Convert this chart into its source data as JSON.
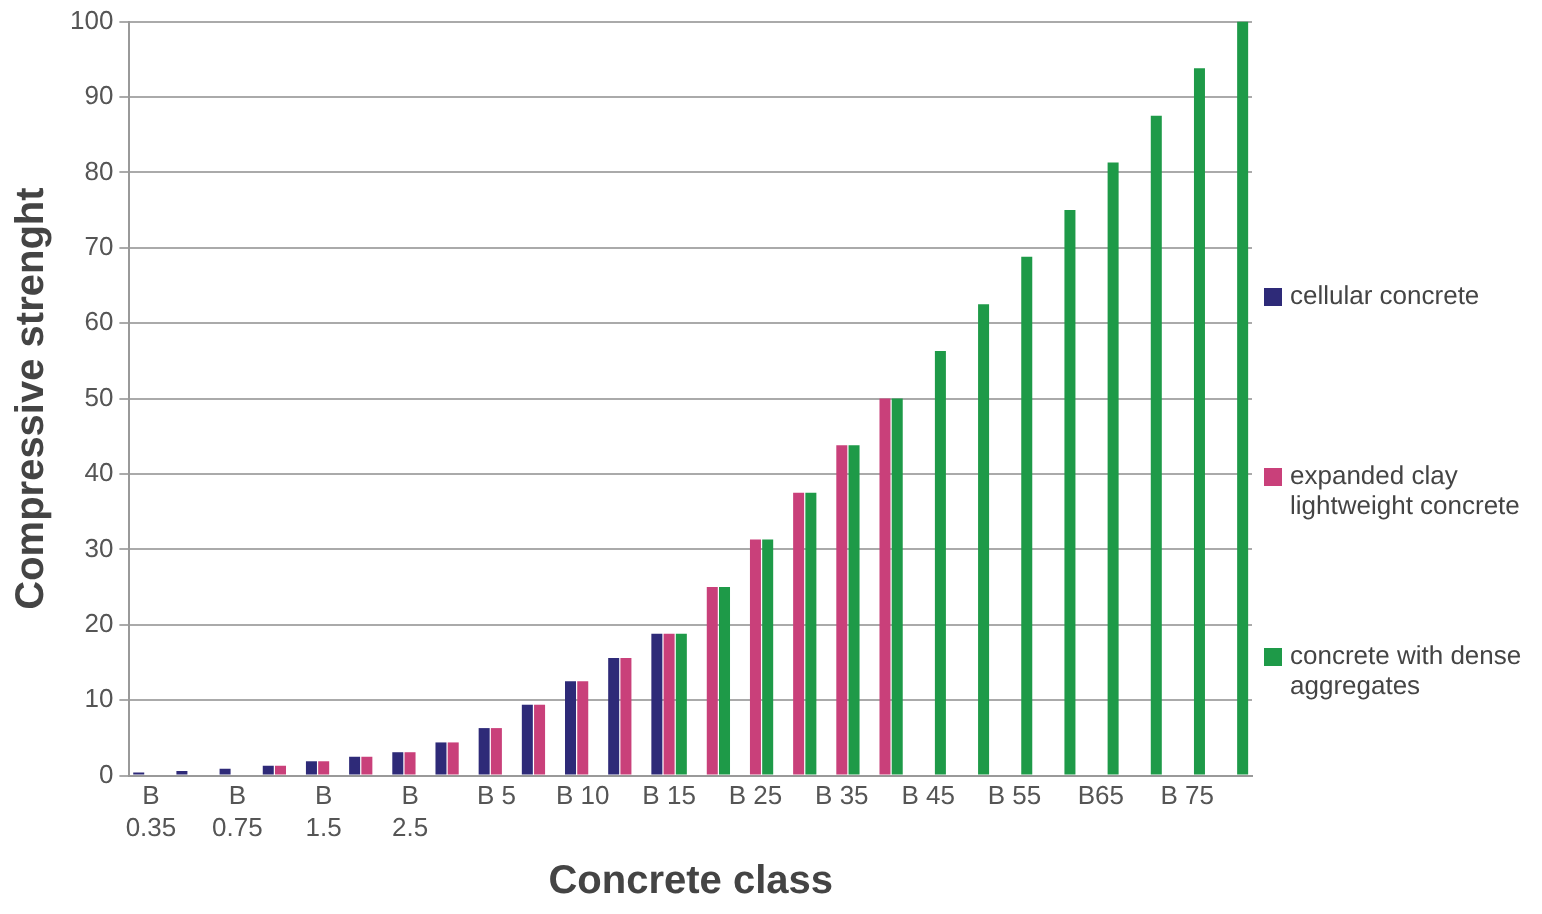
{
  "chart_data": {
    "type": "bar",
    "xlabel": "Concrete class",
    "ylabel": "Compressive strenght",
    "categories": [
      "B 0.35",
      null,
      "B 0.75",
      null,
      "B 1.5",
      null,
      "B 2.5",
      null,
      "B 5",
      null,
      "B 10",
      null,
      "B 15",
      null,
      "B 25",
      null,
      "B 35",
      null,
      "B 45",
      null,
      "B 55",
      null,
      "B65",
      null,
      "B 75",
      null
    ],
    "series": [
      {
        "name": "cellular concrete",
        "color": "#2e2a78",
        "values": [
          0.4,
          0.6,
          0.9,
          1.3,
          1.9,
          2.5,
          3.1,
          4.4,
          6.3,
          9.4,
          12.5,
          15.6,
          18.8,
          null,
          null,
          null,
          null,
          null,
          null,
          null,
          null,
          null,
          null,
          null,
          null,
          null
        ]
      },
      {
        "name": "expanded clay lightweight concrete",
        "color": "#c9407a",
        "values": [
          null,
          null,
          null,
          1.3,
          1.9,
          2.5,
          3.1,
          4.4,
          6.3,
          9.4,
          12.5,
          15.6,
          18.8,
          25,
          31.3,
          37.5,
          43.8,
          50,
          null,
          null,
          null,
          null,
          null,
          null,
          null,
          null
        ]
      },
      {
        "name": "concrete with dense aggregates",
        "color": "#1e9a48",
        "values": [
          null,
          null,
          null,
          null,
          null,
          null,
          null,
          null,
          null,
          null,
          null,
          null,
          18.8,
          25,
          31.3,
          37.5,
          43.8,
          50,
          56.3,
          62.5,
          68.8,
          75,
          81.3,
          87.5,
          93.8,
          100
        ]
      }
    ],
    "ylim": [
      0,
      100
    ],
    "yticks": [
      0,
      10,
      20,
      30,
      40,
      50,
      60,
      70,
      80,
      90,
      100
    ],
    "grid": "y",
    "legend": "right"
  }
}
